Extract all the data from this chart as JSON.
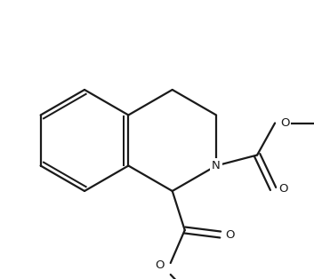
{
  "bg_color": "#ffffff",
  "line_color": "#1a1a1a",
  "line_width": 1.6,
  "figsize": [
    3.53,
    3.14
  ],
  "dpi": 100,
  "N_label": "N",
  "O_label": "O"
}
